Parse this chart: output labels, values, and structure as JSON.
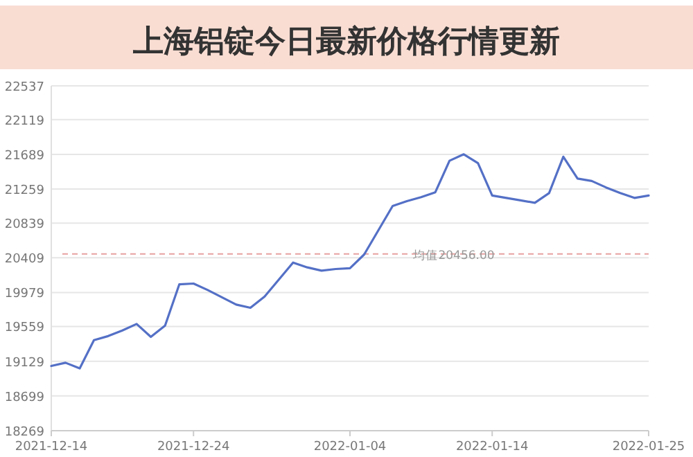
{
  "chart_data": {
    "type": "line",
    "title": "上海铝锭今日最新价格行情更新",
    "categories": [
      "2021-12-14",
      null,
      null,
      null,
      null,
      null,
      null,
      null,
      null,
      null,
      "2021-12-24",
      null,
      null,
      null,
      null,
      null,
      null,
      null,
      null,
      null,
      null,
      "2022-01-04",
      null,
      null,
      null,
      null,
      null,
      null,
      null,
      null,
      null,
      "2022-01-14",
      null,
      null,
      null,
      null,
      null,
      null,
      null,
      null,
      null,
      null,
      "2022-01-25"
    ],
    "values": [
      19070,
      19110,
      19040,
      19390,
      19440,
      19510,
      19590,
      19430,
      19570,
      20080,
      20090,
      20010,
      19920,
      19830,
      19790,
      19930,
      20140,
      20350,
      20290,
      20250,
      20270,
      20280,
      20450,
      20750,
      21050,
      21110,
      21160,
      21220,
      21610,
      21690,
      21580,
      21180,
      21150,
      21120,
      21090,
      21210,
      21660,
      21390,
      21360,
      21280,
      21210,
      21150,
      21180
    ],
    "color": "#5470c6",
    "ylim": [
      18269,
      22537
    ],
    "yticks": [
      18269,
      18699,
      19129,
      19559,
      19979,
      20409,
      20839,
      21259,
      21689,
      22119,
      22537
    ],
    "grid": "y",
    "ref_lines": [
      {
        "axis": "y",
        "value": 20456,
        "label": "均值20456.00",
        "line_style": "dashed",
        "color": "#e8a0a0"
      }
    ]
  }
}
